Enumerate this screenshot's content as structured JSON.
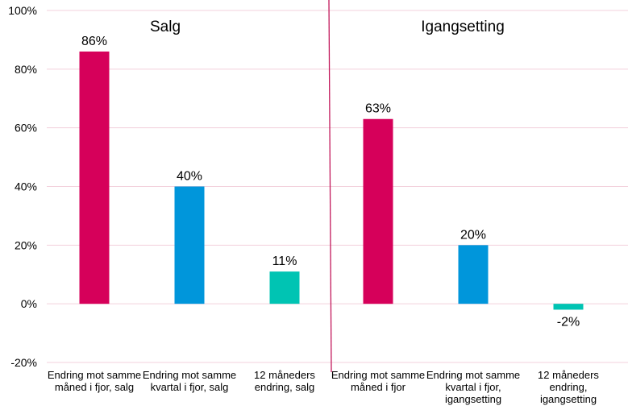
{
  "chart_data": {
    "type": "bar",
    "ylim": [
      -20,
      100
    ],
    "yticks": [
      "-20%",
      "0%",
      "20%",
      "40%",
      "60%",
      "80%",
      "100%"
    ],
    "grid": true,
    "colors": {
      "bar1": "#d6005a",
      "bar2": "#0096db",
      "bar3": "#00c4b3",
      "divider": "#c2185b",
      "grid": "#f3d0dc"
    },
    "panels": [
      {
        "title": "Salg",
        "bars": [
          {
            "category": [
              "Endring mot samme",
              "måned i fjor, salg"
            ],
            "value": 86,
            "label": "86%"
          },
          {
            "category": [
              "Endring mot samme",
              "kvartal i fjor, salg"
            ],
            "value": 40,
            "label": "40%"
          },
          {
            "category": [
              "12 måneders",
              "endring, salg"
            ],
            "value": 11,
            "label": "11%"
          }
        ]
      },
      {
        "title": "Igangsetting",
        "bars": [
          {
            "category": [
              "Endring mot samme",
              "måned i fjor"
            ],
            "value": 63,
            "label": "63%"
          },
          {
            "category": [
              "Endring mot samme",
              "kvartal i fjor,",
              "igangsetting"
            ],
            "value": 20,
            "label": "20%"
          },
          {
            "category": [
              "12 måneders",
              "endring,",
              "igangsetting"
            ],
            "value": -2,
            "label": "-2%"
          }
        ]
      }
    ]
  }
}
